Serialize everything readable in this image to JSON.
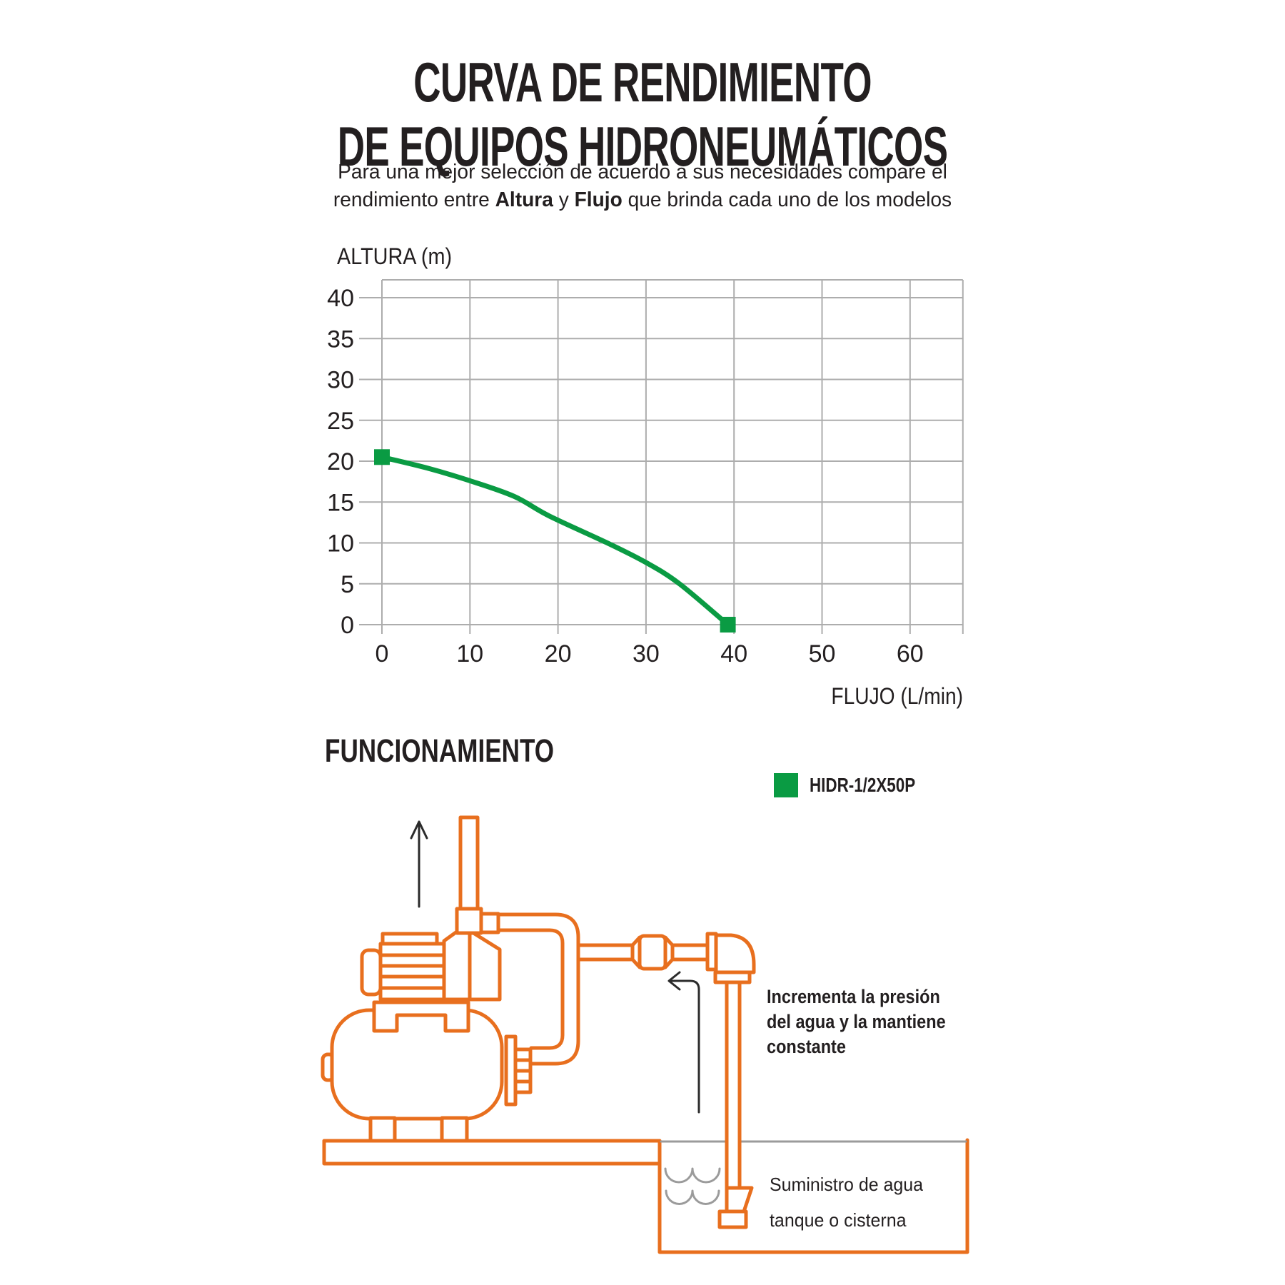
{
  "title": {
    "line1": "CURVA DE RENDIMIENTO",
    "line2": "DE EQUIPOS HIDRONEUMÁTICOS"
  },
  "subtitle": {
    "line1": "Para una mejor selección de acuerdo a sus necesidades compare el",
    "line2_parts": {
      "a": "rendimiento entre ",
      "b": "Altura",
      "c": " y ",
      "d": "Flujo",
      "e": " que brinda cada uno de los modelos"
    }
  },
  "chart_data": {
    "type": "line",
    "xlabel": "FLUJO (L/min)",
    "ylabel": "ALTURA (m)",
    "x_ticks": [
      0,
      10,
      20,
      30,
      40,
      50,
      60
    ],
    "y_ticks": [
      0,
      5,
      10,
      15,
      20,
      25,
      30,
      35,
      40
    ],
    "xlim": [
      0,
      66
    ],
    "ylim": [
      0,
      42.2
    ],
    "grid": true,
    "grid_color": "#adadad",
    "legend_position": "below-right",
    "series": [
      {
        "name": "HIDR-1/2X50P",
        "color": "#0a9b43",
        "marker": "square-endpoints",
        "points": [
          [
            0,
            20.5
          ],
          [
            5,
            19.2
          ],
          [
            10,
            17.6
          ],
          [
            15,
            15.7
          ],
          [
            19,
            13.3
          ],
          [
            25.6,
            10
          ],
          [
            30,
            7.6
          ],
          [
            33.8,
            5
          ],
          [
            39.3,
            0
          ]
        ]
      }
    ]
  },
  "functioning": {
    "heading": "FUNCIONAMIENTO"
  },
  "legend": {
    "swatch_color": "#0a9b43",
    "label": "HIDR-1/2X50P"
  },
  "diagram": {
    "colors": {
      "line_art": "#e86f1e",
      "water": "#9b9b9b",
      "ink": "#2b2b2b"
    },
    "annotations": {
      "pressure_line1": "Incrementa la presión",
      "pressure_line2": "del agua y la mantiene",
      "pressure_line3": "constante",
      "supply_line1": "Suministro de agua",
      "supply_line2": "tanque o cisterna"
    }
  }
}
